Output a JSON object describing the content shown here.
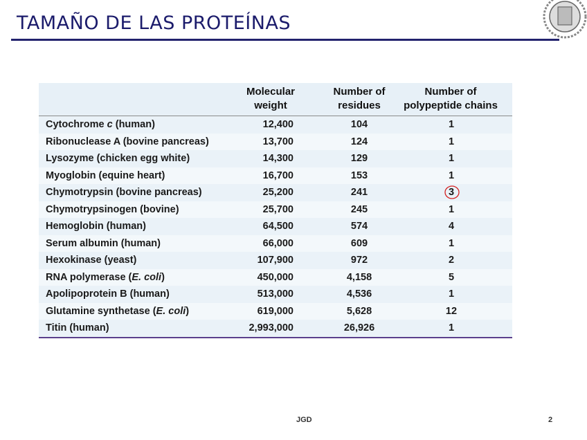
{
  "header": {
    "title": "TAMAÑO DE LAS PROTEÍNAS"
  },
  "table": {
    "columns": [
      [
        "Molecular",
        "weight"
      ],
      [
        "Number of",
        "residues"
      ],
      [
        "Number of",
        "polypeptide chains"
      ]
    ],
    "rows": [
      {
        "name": [
          "Cytochrome ",
          "c",
          " (human)"
        ],
        "cells": [
          "12,400",
          "104",
          "1"
        ]
      },
      {
        "name": [
          "Ribonuclease A (bovine pancreas)"
        ],
        "cells": [
          "13,700",
          "124",
          "1"
        ]
      },
      {
        "name": [
          "Lysozyme (chicken egg white)"
        ],
        "cells": [
          "14,300",
          "129",
          "1"
        ]
      },
      {
        "name": [
          "Myoglobin (equine heart)"
        ],
        "cells": [
          "16,700",
          "153",
          "1"
        ]
      },
      {
        "name": [
          "Chymotrypsin (bovine pancreas)"
        ],
        "cells": [
          "25,200",
          "241",
          "3"
        ]
      },
      {
        "name": [
          "Chymotrypsinogen (bovine)"
        ],
        "cells": [
          "25,700",
          "245",
          "1"
        ]
      },
      {
        "name": [
          "Hemoglobin (human)"
        ],
        "cells": [
          "64,500",
          "574",
          "4"
        ]
      },
      {
        "name": [
          "Serum albumin (human)"
        ],
        "cells": [
          "66,000",
          "609",
          "1"
        ]
      },
      {
        "name": [
          "Hexokinase (yeast)"
        ],
        "cells": [
          "107,900",
          "972",
          "2"
        ]
      },
      {
        "name": [
          "RNA polymerase (",
          "E. coli",
          ")"
        ],
        "cells": [
          "450,000",
          "4,158",
          "5"
        ]
      },
      {
        "name": [
          "Apolipoprotein B (human)"
        ],
        "cells": [
          "513,000",
          "4,536",
          "1"
        ]
      },
      {
        "name": [
          "Glutamine synthetase (",
          "E. coli",
          ")"
        ],
        "cells": [
          "619,000",
          "5,628",
          "12"
        ]
      },
      {
        "name": [
          "Titin (human)"
        ],
        "cells": [
          "2,993,000",
          "26,926",
          "1"
        ]
      }
    ]
  },
  "footer": {
    "author": "JGD",
    "page": "2"
  }
}
